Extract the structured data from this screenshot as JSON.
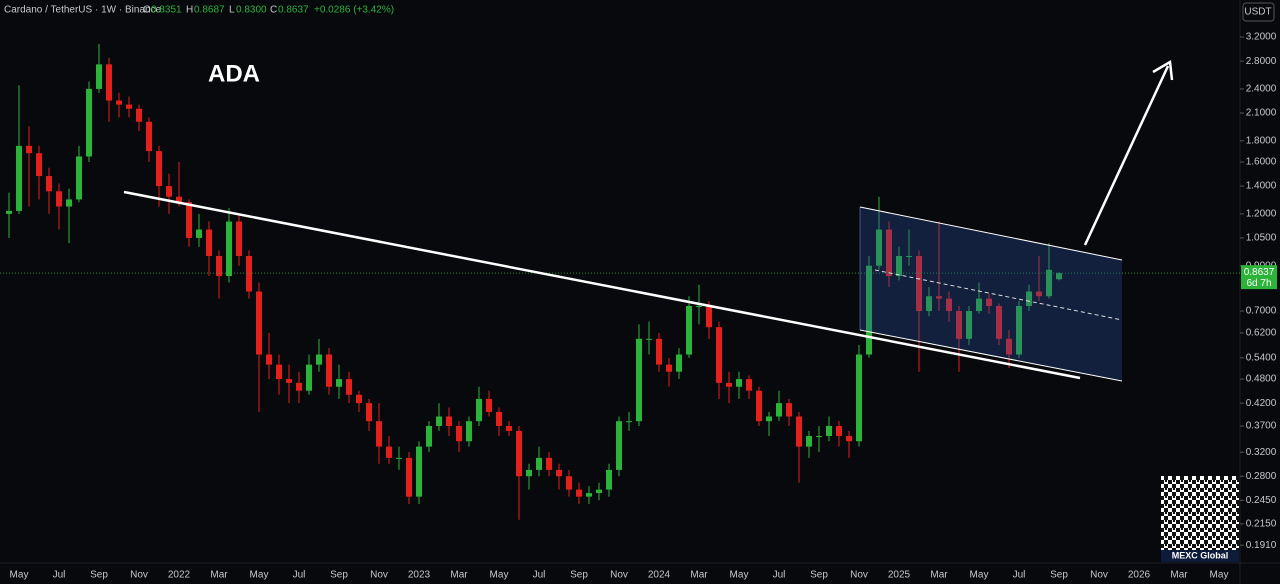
{
  "header": {
    "symbol": "Cardano / TetherUS · 1W · Binance",
    "o_label": "O",
    "open": "0.8351",
    "h_label": "H",
    "high": "0.8687",
    "l_label": "L",
    "low": "0.8300",
    "c_label": "C",
    "close": "0.8637",
    "change": "+0.0286 (+3.42%)",
    "currency": "USDT",
    "countdown": "6d 7h",
    "watermark": "MEXC Global"
  },
  "chart_data": {
    "type": "candlestick",
    "annotation": "ADA",
    "log_scale": true,
    "up_color": "#2bb33a",
    "down_color": "#e3201c",
    "categories": [
      null,
      "May",
      null,
      null,
      null,
      "Jul",
      null,
      null,
      null,
      "Sep",
      null,
      null,
      null,
      "Nov",
      null,
      null,
      null,
      "2022",
      null,
      null,
      null,
      "Mar",
      null,
      null,
      null,
      "May",
      null,
      null,
      null,
      "Jul",
      null,
      null,
      null,
      "Sep",
      null,
      null,
      null,
      "Nov",
      null,
      null,
      null,
      "2023",
      null,
      null,
      null,
      "Mar",
      null,
      null,
      null,
      "May",
      null,
      null,
      null,
      "Jul",
      null,
      null,
      null,
      "Sep",
      null,
      null,
      null,
      "Nov",
      null,
      null,
      null,
      "2024",
      null,
      null,
      null,
      "Mar",
      null,
      null,
      null,
      "May",
      null,
      null,
      null,
      "Jul",
      null,
      null,
      null,
      "Sep",
      null,
      null,
      null,
      "Nov",
      null,
      null,
      null,
      "2025",
      null,
      null,
      null,
      "Mar",
      null,
      null,
      null,
      "May",
      null,
      null,
      null,
      "Jul",
      null,
      null,
      null,
      "Sep",
      null,
      null,
      null,
      "Nov",
      null,
      null,
      null,
      "2026",
      null,
      null,
      null,
      "Mar",
      null,
      null,
      null,
      "May",
      null
    ],
    "open": [
      1.2,
      1.22,
      1.75,
      1.68,
      1.48,
      1.36,
      1.25,
      1.3,
      1.65,
      2.4,
      2.75,
      2.25,
      2.2,
      2.15,
      2.0,
      1.7,
      1.4,
      1.32,
      1.28,
      1.05,
      1.1,
      0.95,
      0.85,
      1.15,
      0.95,
      0.78,
      0.55,
      0.52,
      0.48,
      0.47,
      0.45,
      0.52,
      0.55,
      0.46,
      0.48,
      0.44,
      0.42,
      0.38,
      0.33,
      0.31,
      0.31,
      0.25,
      0.33,
      0.37,
      0.39,
      0.37,
      0.34,
      0.38,
      0.43,
      0.4,
      0.37,
      0.36,
      0.28,
      0.29,
      0.31,
      0.29,
      0.28,
      0.26,
      0.25,
      0.255,
      0.26,
      0.29,
      0.38,
      0.38,
      0.6,
      0.6,
      0.52,
      0.5,
      0.55,
      0.72,
      0.72,
      0.64,
      0.47,
      0.46,
      0.48,
      0.45,
      0.38,
      0.39,
      0.42,
      0.39,
      0.33,
      0.35,
      0.35,
      0.37,
      0.35,
      0.34,
      0.55,
      0.9,
      1.1,
      0.85,
      0.95,
      0.95,
      0.7,
      0.76,
      0.75,
      0.7,
      0.6,
      0.7,
      0.75,
      0.72,
      0.6,
      0.55,
      0.72,
      0.78,
      0.76,
      0.8351,
      null,
      null,
      null,
      null,
      null,
      null,
      null,
      null,
      null,
      null,
      null,
      null,
      null,
      null,
      null,
      null,
      null
    ],
    "high": [
      1.35,
      2.45,
      1.95,
      1.75,
      1.55,
      1.42,
      1.38,
      1.75,
      2.5,
      3.08,
      2.85,
      2.35,
      2.3,
      2.2,
      2.05,
      1.75,
      1.5,
      1.6,
      1.3,
      1.2,
      1.15,
      0.98,
      1.24,
      1.2,
      0.98,
      0.82,
      0.62,
      0.55,
      0.52,
      0.5,
      0.55,
      0.6,
      0.57,
      0.52,
      0.5,
      0.45,
      0.43,
      0.42,
      0.35,
      0.33,
      0.32,
      0.34,
      0.38,
      0.42,
      0.41,
      0.38,
      0.39,
      0.46,
      0.45,
      0.41,
      0.38,
      0.37,
      0.3,
      0.33,
      0.32,
      0.3,
      0.29,
      0.27,
      0.265,
      0.27,
      0.3,
      0.39,
      0.4,
      0.65,
      0.66,
      0.62,
      0.54,
      0.57,
      0.76,
      0.81,
      0.74,
      0.66,
      0.5,
      0.5,
      0.49,
      0.46,
      0.4,
      0.45,
      0.43,
      0.4,
      0.36,
      0.37,
      0.39,
      0.38,
      0.36,
      0.58,
      0.95,
      1.32,
      1.15,
      1.0,
      1.1,
      0.98,
      0.8,
      1.15,
      0.78,
      0.72,
      0.72,
      0.82,
      0.77,
      0.73,
      0.63,
      0.74,
      0.81,
      0.95,
      1.02,
      0.8687,
      null,
      null,
      null,
      null,
      null,
      null,
      null,
      null,
      null,
      null,
      null,
      null,
      null,
      null,
      null,
      null,
      null
    ],
    "low": [
      1.05,
      1.2,
      1.25,
      1.3,
      1.2,
      1.1,
      1.02,
      1.28,
      1.6,
      2.35,
      2.0,
      2.05,
      2.05,
      1.9,
      1.6,
      1.25,
      1.2,
      1.25,
      1.0,
      1.0,
      0.85,
      0.75,
      0.82,
      0.9,
      0.75,
      0.4,
      0.48,
      0.44,
      0.42,
      0.42,
      0.44,
      0.5,
      0.44,
      0.43,
      0.42,
      0.4,
      0.36,
      0.3,
      0.3,
      0.29,
      0.24,
      0.24,
      0.32,
      0.36,
      0.35,
      0.32,
      0.33,
      0.37,
      0.39,
      0.35,
      0.35,
      0.22,
      0.26,
      0.28,
      0.28,
      0.26,
      0.25,
      0.24,
      0.24,
      0.245,
      0.25,
      0.28,
      0.36,
      0.37,
      0.55,
      0.5,
      0.46,
      0.48,
      0.54,
      0.65,
      0.6,
      0.43,
      0.42,
      0.43,
      0.43,
      0.37,
      0.35,
      0.38,
      0.37,
      0.27,
      0.31,
      0.32,
      0.34,
      0.33,
      0.31,
      0.33,
      0.54,
      0.88,
      0.8,
      0.83,
      0.9,
      0.5,
      0.68,
      0.7,
      0.66,
      0.5,
      0.58,
      0.69,
      0.69,
      0.58,
      0.51,
      0.54,
      0.7,
      0.74,
      0.75,
      0.83,
      null,
      null,
      null,
      null,
      null,
      null,
      null,
      null,
      null,
      null,
      null,
      null,
      null,
      null,
      null,
      null,
      null
    ],
    "close": [
      1.22,
      1.75,
      1.68,
      1.48,
      1.36,
      1.25,
      1.3,
      1.65,
      2.4,
      2.75,
      2.25,
      2.2,
      2.15,
      2.0,
      1.7,
      1.4,
      1.32,
      1.28,
      1.05,
      1.1,
      0.95,
      0.85,
      1.15,
      0.95,
      0.78,
      0.55,
      0.52,
      0.48,
      0.47,
      0.45,
      0.52,
      0.55,
      0.46,
      0.48,
      0.44,
      0.42,
      0.38,
      0.33,
      0.31,
      0.31,
      0.25,
      0.33,
      0.37,
      0.39,
      0.37,
      0.34,
      0.38,
      0.43,
      0.4,
      0.37,
      0.36,
      0.28,
      0.29,
      0.31,
      0.29,
      0.28,
      0.26,
      0.25,
      0.255,
      0.26,
      0.29,
      0.38,
      0.38,
      0.6,
      0.6,
      0.52,
      0.5,
      0.55,
      0.72,
      0.72,
      0.64,
      0.47,
      0.46,
      0.48,
      0.45,
      0.38,
      0.39,
      0.42,
      0.39,
      0.33,
      0.35,
      0.35,
      0.37,
      0.35,
      0.34,
      0.55,
      0.9,
      1.1,
      0.85,
      0.95,
      0.95,
      0.7,
      0.76,
      0.75,
      0.7,
      0.6,
      0.7,
      0.75,
      0.72,
      0.6,
      0.55,
      0.72,
      0.78,
      0.76,
      0.88,
      0.8637,
      null,
      null,
      null,
      null,
      null,
      null,
      null,
      null,
      null,
      null,
      null,
      null,
      null,
      null,
      null,
      null,
      null
    ],
    "ylim": [
      0.174,
      3.93
    ],
    "yticks": [
      {
        "value": 3.2,
        "label": "3.2000"
      },
      {
        "value": 2.8,
        "label": "2.8000"
      },
      {
        "value": 2.4,
        "label": "2.4000"
      },
      {
        "value": 2.1,
        "label": "2.1000"
      },
      {
        "value": 1.8,
        "label": "1.8000"
      },
      {
        "value": 1.6,
        "label": "1.6000"
      },
      {
        "value": 1.4,
        "label": "1.4000"
      },
      {
        "value": 1.2,
        "label": "1.2000"
      },
      {
        "value": 1.05,
        "label": "1.0500"
      },
      {
        "value": 0.9,
        "label": "0.9000"
      },
      {
        "value": 0.7,
        "label": "0.7000"
      },
      {
        "value": 0.62,
        "label": "0.6200"
      },
      {
        "value": 0.54,
        "label": "0.5400"
      },
      {
        "value": 0.48,
        "label": "0.4800"
      },
      {
        "value": 0.42,
        "label": "0.4200"
      },
      {
        "value": 0.37,
        "label": "0.3700"
      },
      {
        "value": 0.32,
        "label": "0.3200"
      },
      {
        "value": 0.28,
        "label": "0.2800"
      },
      {
        "value": 0.245,
        "label": "0.2450"
      },
      {
        "value": 0.215,
        "label": "0.2150"
      },
      {
        "value": 0.191,
        "label": "0.1910"
      }
    ]
  }
}
